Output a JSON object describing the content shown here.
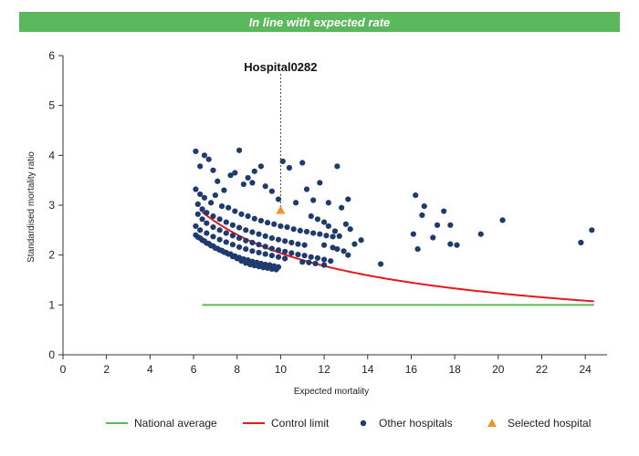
{
  "banner": {
    "text": "In line with expected rate",
    "color": "#5cb85c"
  },
  "chart_data": {
    "type": "scatter",
    "title": "In line with expected rate",
    "xlabel": "Expected mortality",
    "ylabel": "Standardised mortality ratio",
    "xlim": [
      0,
      25
    ],
    "ylim": [
      0,
      6
    ],
    "x_ticks": [
      0,
      2,
      4,
      6,
      8,
      10,
      12,
      14,
      16,
      18,
      20,
      22,
      24
    ],
    "y_ticks": [
      0,
      1,
      2,
      3,
      4,
      5,
      6
    ],
    "grid": false,
    "legend_position": "bottom",
    "national_average": {
      "name": "National average",
      "color": "#5cb85c",
      "y": 1,
      "x_range": [
        6.4,
        24.4
      ]
    },
    "control_limit": {
      "name": "Control limit",
      "color": "#e31a1c",
      "x_range": [
        6.4,
        24.4
      ]
    },
    "selected_hospital": {
      "name": "Selected hospital",
      "label": "Hospital0282",
      "x": 10,
      "y": 2.9,
      "color": "#f0932b"
    },
    "other_hospitals": {
      "name": "Other hospitals",
      "color": "#1f3a6e",
      "points": [
        [
          6.1,
          4.08
        ],
        [
          6.3,
          3.78
        ],
        [
          6.5,
          4.0
        ],
        [
          6.7,
          3.92
        ],
        [
          6.9,
          3.7
        ],
        [
          7.1,
          3.48
        ],
        [
          7.4,
          3.3
        ],
        [
          7.7,
          3.6
        ],
        [
          7.9,
          3.65
        ],
        [
          8.1,
          4.1
        ],
        [
          8.3,
          3.42
        ],
        [
          8.5,
          3.55
        ],
        [
          8.7,
          3.45
        ],
        [
          8.8,
          3.68
        ],
        [
          9.1,
          3.78
        ],
        [
          9.3,
          3.38
        ],
        [
          9.6,
          3.28
        ],
        [
          9.9,
          3.12
        ],
        [
          10.1,
          3.88
        ],
        [
          10.4,
          3.75
        ],
        [
          10.7,
          3.05
        ],
        [
          11.0,
          3.85
        ],
        [
          11.2,
          3.32
        ],
        [
          11.5,
          3.1
        ],
        [
          11.8,
          3.45
        ],
        [
          12.2,
          3.05
        ],
        [
          12.6,
          3.78
        ],
        [
          12.8,
          2.95
        ],
        [
          13.1,
          3.12
        ],
        [
          6.1,
          3.32
        ],
        [
          6.3,
          3.22
        ],
        [
          6.5,
          3.15
        ],
        [
          6.8,
          3.05
        ],
        [
          7.0,
          3.2
        ],
        [
          7.3,
          2.98
        ],
        [
          7.6,
          2.95
        ],
        [
          7.9,
          2.88
        ],
        [
          8.2,
          2.82
        ],
        [
          8.5,
          2.78
        ],
        [
          8.8,
          2.73
        ],
        [
          9.1,
          2.69
        ],
        [
          9.4,
          2.65
        ],
        [
          9.7,
          2.62
        ],
        [
          10.0,
          2.58
        ],
        [
          10.3,
          2.56
        ],
        [
          10.6,
          2.52
        ],
        [
          10.9,
          2.49
        ],
        [
          11.2,
          2.47
        ],
        [
          11.5,
          2.44
        ],
        [
          11.8,
          2.42
        ],
        [
          12.1,
          2.39
        ],
        [
          12.4,
          2.37
        ],
        [
          6.2,
          3.02
        ],
        [
          6.4,
          2.92
        ],
        [
          6.6,
          2.85
        ],
        [
          6.9,
          2.78
        ],
        [
          7.2,
          2.72
        ],
        [
          7.5,
          2.66
        ],
        [
          7.8,
          2.6
        ],
        [
          8.1,
          2.55
        ],
        [
          8.4,
          2.5
        ],
        [
          8.7,
          2.46
        ],
        [
          9.0,
          2.42
        ],
        [
          9.3,
          2.38
        ],
        [
          9.6,
          2.34
        ],
        [
          9.9,
          2.31
        ],
        [
          10.2,
          2.28
        ],
        [
          10.5,
          2.25
        ],
        [
          10.8,
          2.22
        ],
        [
          11.1,
          2.2
        ],
        [
          6.2,
          2.82
        ],
        [
          6.4,
          2.72
        ],
        [
          6.6,
          2.64
        ],
        [
          6.9,
          2.56
        ],
        [
          7.2,
          2.5
        ],
        [
          7.5,
          2.44
        ],
        [
          7.8,
          2.39
        ],
        [
          8.1,
          2.34
        ],
        [
          8.4,
          2.29
        ],
        [
          8.7,
          2.25
        ],
        [
          9.0,
          2.21
        ],
        [
          9.3,
          2.17
        ],
        [
          9.6,
          2.13
        ],
        [
          9.9,
          2.1
        ],
        [
          10.2,
          2.07
        ],
        [
          10.5,
          2.04
        ],
        [
          10.8,
          2.01
        ],
        [
          11.1,
          1.99
        ],
        [
          11.4,
          1.96
        ],
        [
          11.7,
          1.94
        ],
        [
          12.0,
          1.91
        ],
        [
          12.3,
          1.88
        ],
        [
          6.1,
          2.58
        ],
        [
          6.3,
          2.5
        ],
        [
          6.6,
          2.44
        ],
        [
          6.9,
          2.37
        ],
        [
          7.2,
          2.31
        ],
        [
          7.5,
          2.26
        ],
        [
          7.8,
          2.21
        ],
        [
          8.1,
          2.16
        ],
        [
          8.4,
          2.12
        ],
        [
          8.7,
          2.08
        ],
        [
          9.0,
          2.05
        ],
        [
          9.3,
          2.02
        ],
        [
          9.6,
          1.99
        ],
        [
          9.9,
          1.96
        ],
        [
          10.2,
          1.93
        ],
        [
          6.1,
          2.4
        ],
        [
          6.3,
          2.34
        ],
        [
          6.5,
          2.28
        ],
        [
          6.7,
          2.23
        ],
        [
          6.9,
          2.18
        ],
        [
          7.1,
          2.13
        ],
        [
          7.3,
          2.09
        ],
        [
          7.5,
          2.05
        ],
        [
          7.7,
          2.02
        ],
        [
          7.9,
          1.98
        ],
        [
          8.1,
          1.95
        ],
        [
          8.3,
          1.92
        ],
        [
          8.5,
          1.9
        ],
        [
          8.7,
          1.87
        ],
        [
          8.9,
          1.85
        ],
        [
          9.1,
          1.83
        ],
        [
          9.3,
          1.81
        ],
        [
          9.5,
          1.8
        ],
        [
          9.7,
          1.78
        ],
        [
          9.9,
          1.76
        ],
        [
          6.2,
          2.36
        ],
        [
          6.4,
          2.3
        ],
        [
          6.6,
          2.24
        ],
        [
          6.8,
          2.19
        ],
        [
          7.0,
          2.14
        ],
        [
          7.2,
          2.1
        ],
        [
          7.4,
          2.06
        ],
        [
          7.6,
          2.02
        ],
        [
          7.8,
          1.97
        ],
        [
          8.0,
          1.93
        ],
        [
          8.2,
          1.88
        ],
        [
          8.4,
          1.84
        ],
        [
          8.6,
          1.81
        ],
        [
          8.8,
          1.79
        ],
        [
          9.0,
          1.77
        ],
        [
          9.2,
          1.75
        ],
        [
          9.4,
          1.74
        ],
        [
          9.6,
          1.72
        ],
        [
          9.8,
          1.71
        ],
        [
          11.4,
          2.78
        ],
        [
          11.7,
          2.72
        ],
        [
          12.0,
          2.66
        ],
        [
          12.2,
          2.58
        ],
        [
          12.5,
          2.48
        ],
        [
          12.7,
          2.38
        ],
        [
          13.0,
          2.62
        ],
        [
          13.2,
          2.52
        ],
        [
          12.4,
          2.15
        ],
        [
          12.6,
          2.12
        ],
        [
          12.9,
          2.08
        ],
        [
          13.1,
          2.0
        ],
        [
          13.4,
          2.22
        ],
        [
          13.7,
          2.3
        ],
        [
          12.0,
          2.2
        ],
        [
          11.3,
          1.85
        ],
        [
          11.6,
          1.83
        ],
        [
          12.0,
          1.8
        ],
        [
          11.0,
          1.86
        ],
        [
          14.6,
          1.82
        ],
        [
          16.1,
          2.42
        ],
        [
          16.2,
          3.2
        ],
        [
          16.3,
          2.12
        ],
        [
          16.5,
          2.8
        ],
        [
          16.6,
          2.98
        ],
        [
          17.0,
          2.35
        ],
        [
          17.2,
          2.6
        ],
        [
          17.5,
          2.88
        ],
        [
          17.8,
          2.6
        ],
        [
          17.8,
          2.22
        ],
        [
          18.1,
          2.2
        ],
        [
          19.2,
          2.42
        ],
        [
          20.2,
          2.7
        ],
        [
          23.8,
          2.25
        ],
        [
          24.3,
          2.5
        ]
      ]
    }
  },
  "legend": [
    {
      "label": "National average",
      "type": "line",
      "color": "#5cb85c"
    },
    {
      "label": "Control limit",
      "type": "line",
      "color": "#e31a1c"
    },
    {
      "label": "Other hospitals",
      "type": "circle",
      "color": "#1f3a6e"
    },
    {
      "label": "Selected hospital",
      "type": "triangle",
      "color": "#f0932b"
    }
  ]
}
